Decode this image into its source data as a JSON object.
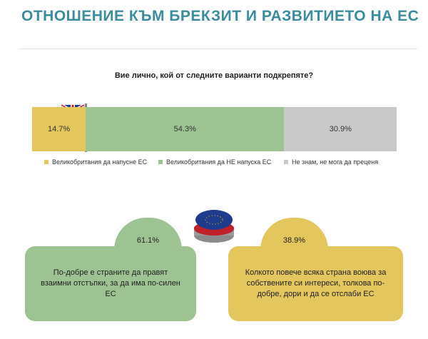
{
  "title": "ОТНОШЕНИЕ КЪМ БРЕКЗИТ И РАЗВИТИЕТО НА ЕС",
  "chart_data": {
    "type": "stacked-bar",
    "title": "Вие лично, кой от следните варианти подкрепяте?",
    "xlim": [
      0,
      100
    ],
    "series": [
      {
        "name": "Великобритания да напусне ЕС",
        "color": "#e3c65e",
        "values": [
          14.7
        ],
        "value_labels": [
          "14.7%"
        ]
      },
      {
        "name": "Великобритания да НЕ напуска ЕС",
        "color": "#9dc393",
        "values": [
          54.3
        ],
        "value_labels": [
          "54.3%"
        ]
      },
      {
        "name": "Не знам, не мога да преценя",
        "color": "#c9c9c9",
        "values": [
          30.9
        ],
        "value_labels": [
          "30.9%"
        ]
      }
    ]
  },
  "callouts": [
    {
      "percent": "61.1%",
      "text": "По-добре е страните да правят взаимни отстъпки, за да има по-силен ЕС",
      "color": "#9dc393"
    },
    {
      "percent": "38.9%",
      "text": "Колкото повече всяка страна воюва за собствените си интереси, толкова по-добре, дори и да се отслаби ЕС",
      "color": "#e3c65e"
    }
  ]
}
